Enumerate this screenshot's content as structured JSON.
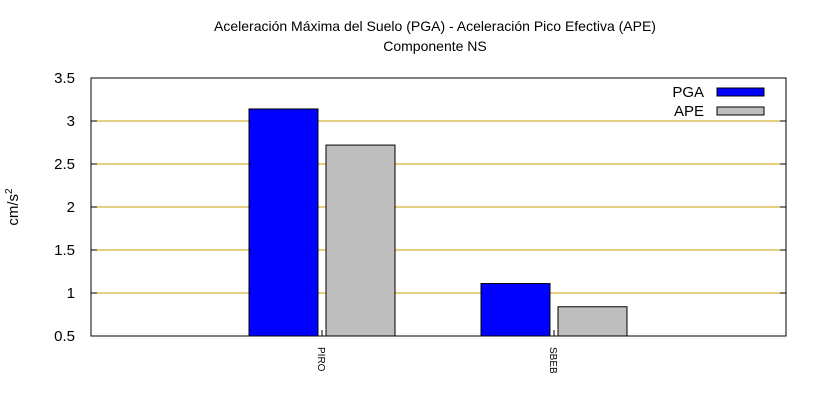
{
  "chart_data": {
    "type": "bar",
    "title": "Aceleración Máxima del Suelo (PGA) -  Aceleración Pico Efectiva (APE)",
    "subtitle": "Componente NS",
    "xlabel": "",
    "ylabel": "cm/s",
    "ylabel_sup": "2",
    "categories": [
      "PIRO",
      "SBEB"
    ],
    "series": [
      {
        "name": "PGA",
        "values": [
          3.14,
          1.11
        ],
        "color": "#0000ff"
      },
      {
        "name": "APE",
        "values": [
          2.72,
          0.84
        ],
        "color": "#bebebe"
      }
    ],
    "ylim": [
      0.5,
      3.5
    ],
    "yticks": [
      "0.5",
      "1",
      "1.5",
      "2",
      "2.5",
      "3",
      "3.5"
    ],
    "grid": true,
    "grid_color": "#c8a000",
    "legend_position": "top-right"
  }
}
